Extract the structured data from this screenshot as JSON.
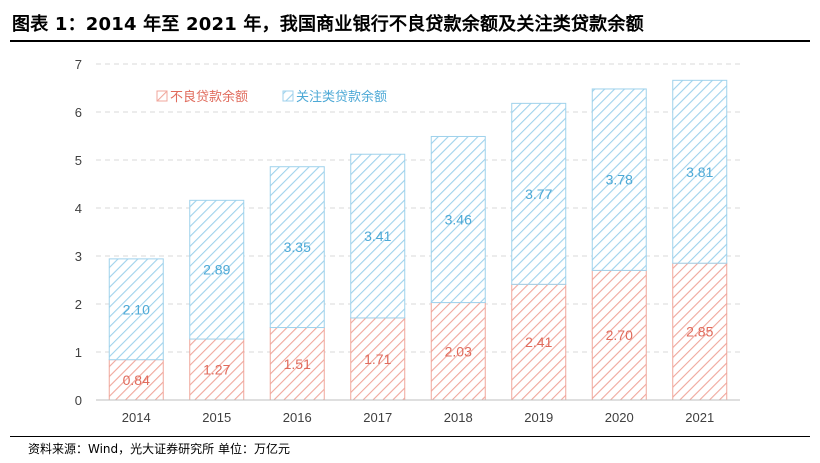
{
  "title": "图表 1：2014 年至 2021 年，我国商业银行不良贷款余额及关注类贷款余额",
  "source": "资料来源：Wind，光大证券研究所    单位：万亿元",
  "chart_data": {
    "type": "bar",
    "stacked": true,
    "categories": [
      "2014",
      "2015",
      "2016",
      "2017",
      "2018",
      "2019",
      "2020",
      "2021"
    ],
    "series": [
      {
        "name": "不良贷款余额",
        "values": [
          0.84,
          1.27,
          1.51,
          1.71,
          2.03,
          2.41,
          2.7,
          2.85
        ],
        "labels": [
          "0.84",
          "1.27",
          "1.51",
          "1.71",
          "2.03",
          "2.41",
          "2.70",
          "2.85"
        ],
        "color": "#e06b5c"
      },
      {
        "name": "关注类贷款余额",
        "values": [
          2.1,
          2.89,
          3.35,
          3.41,
          3.46,
          3.77,
          3.78,
          3.81
        ],
        "labels": [
          "2.10",
          "2.89",
          "3.35",
          "3.41",
          "3.46",
          "3.77",
          "3.78",
          "3.81"
        ],
        "color": "#4da9d6"
      }
    ],
    "ylim": [
      0,
      7
    ],
    "yticks": [
      "0",
      "1",
      "2",
      "3",
      "4",
      "5",
      "6",
      "7"
    ],
    "grid": true,
    "legend_position": "top-left",
    "xlabel": "",
    "ylabel": ""
  }
}
